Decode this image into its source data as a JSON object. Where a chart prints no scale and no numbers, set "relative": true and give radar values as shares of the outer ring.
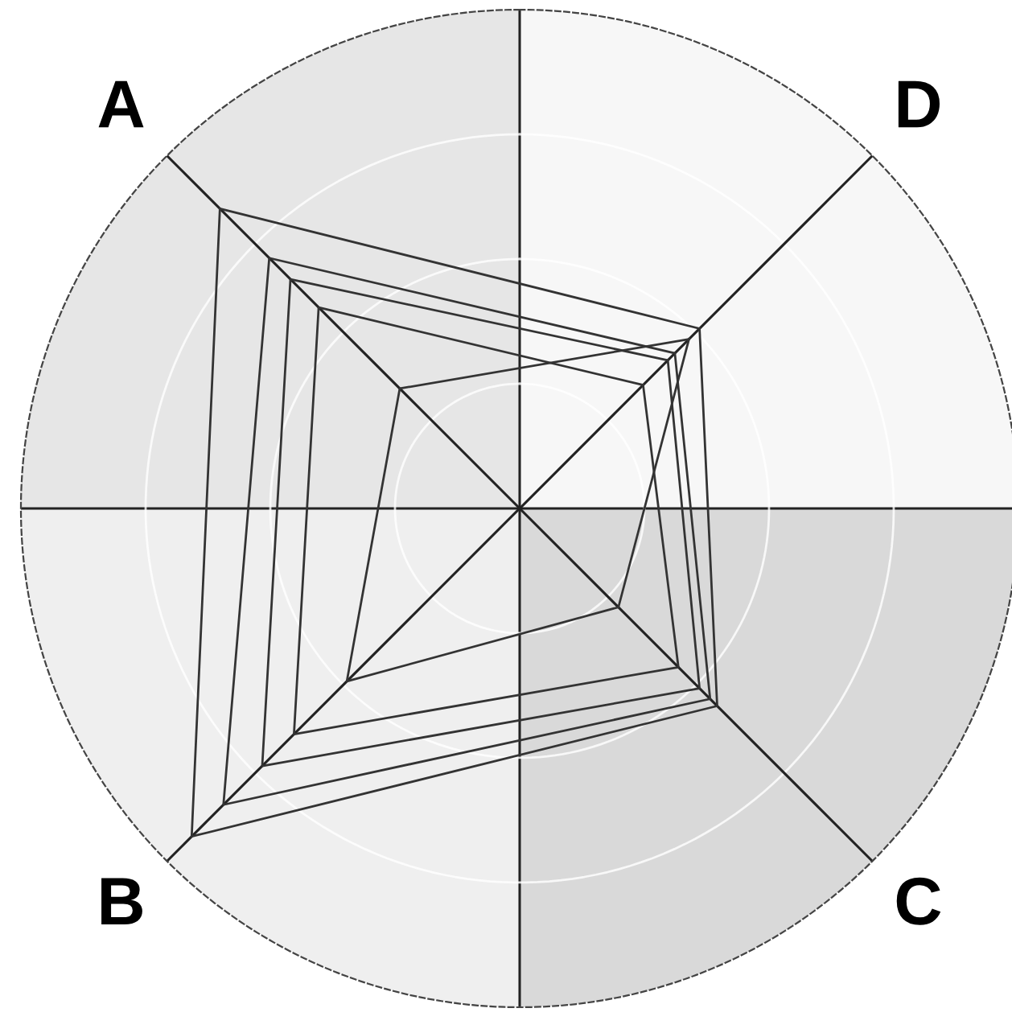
{
  "chart_data": {
    "type": "radar",
    "relative": true,
    "grid": true,
    "marker": "none",
    "line_style": "solid",
    "categories": [
      "D",
      "C",
      "B",
      "A"
    ],
    "series": [
      {
        "color": "#333333",
        "values": [
          0.51,
          0.56,
          0.93,
          0.85
        ]
      },
      {
        "color": "#333333",
        "values": [
          0.44,
          0.54,
          0.84,
          0.71
        ]
      },
      {
        "color": "#333333",
        "values": [
          0.42,
          0.51,
          0.73,
          0.65
        ]
      },
      {
        "color": "#333333",
        "values": [
          0.35,
          0.45,
          0.64,
          0.57
        ]
      },
      {
        "color": "#333333",
        "values": [
          0.48,
          0.28,
          0.49,
          0.34
        ]
      }
    ]
  }
}
